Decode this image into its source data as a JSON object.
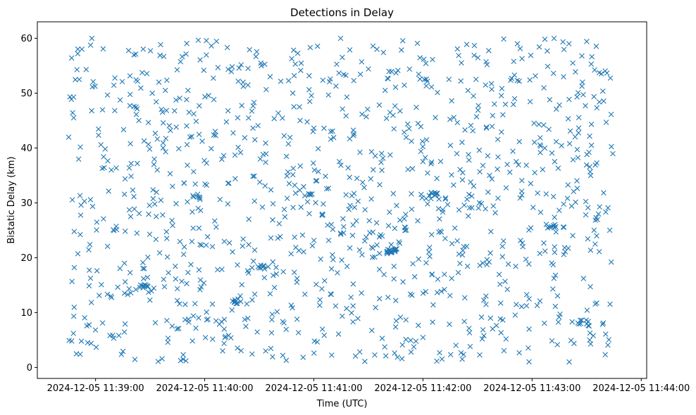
{
  "chart_data": {
    "type": "scatter",
    "title": "Detections in Delay",
    "xlabel": "Time (UTC)",
    "ylabel": "Bistatic Delay (km)",
    "marker": "x",
    "series_color": "#1f77b4",
    "xlim": [
      -17,
      318
    ],
    "x_unit": "seconds after 2024-12-05 11:38:45 UTC",
    "ylim": [
      -2,
      63
    ],
    "x_ticks": [
      {
        "value": 15,
        "label": "2024-12-05 11:39:00"
      },
      {
        "value": 75,
        "label": "2024-12-05 11:40:00"
      },
      {
        "value": 135,
        "label": "2024-12-05 11:41:00"
      },
      {
        "value": 195,
        "label": "2024-12-05 11:42:00"
      },
      {
        "value": 255,
        "label": "2024-12-05 11:43:00"
      },
      {
        "value": 315,
        "label": "2024-12-05 11:44:00"
      }
    ],
    "y_ticks": [
      {
        "value": 0,
        "label": "0"
      },
      {
        "value": 10,
        "label": "10"
      },
      {
        "value": 20,
        "label": "20"
      },
      {
        "value": 30,
        "label": "30"
      },
      {
        "value": 40,
        "label": "40"
      },
      {
        "value": 50,
        "label": "50"
      },
      {
        "value": 60,
        "label": "60"
      }
    ],
    "point_count": 1200,
    "point_generation": "approximately uniform random scatter, x from 0 to 300 s, y from 1 to 60 km, with small dense clusters",
    "time_range_seconds": [
      0,
      300
    ],
    "delay_range_km": [
      1,
      60
    ],
    "clusters": [
      {
        "x": 41,
        "y": 14.7,
        "count": 10
      },
      {
        "x": 70,
        "y": 31.0,
        "count": 6
      },
      {
        "x": 93,
        "y": 12.0,
        "count": 8
      },
      {
        "x": 107,
        "y": 18.3,
        "count": 6
      },
      {
        "x": 132,
        "y": 31.3,
        "count": 6
      },
      {
        "x": 178,
        "y": 21.3,
        "count": 18
      },
      {
        "x": 200,
        "y": 31.5,
        "count": 10
      },
      {
        "x": 265,
        "y": 25.8,
        "count": 8
      },
      {
        "x": 283,
        "y": 8.3,
        "count": 8
      }
    ],
    "seed": 20241205,
    "legend": "none",
    "grid": false
  }
}
